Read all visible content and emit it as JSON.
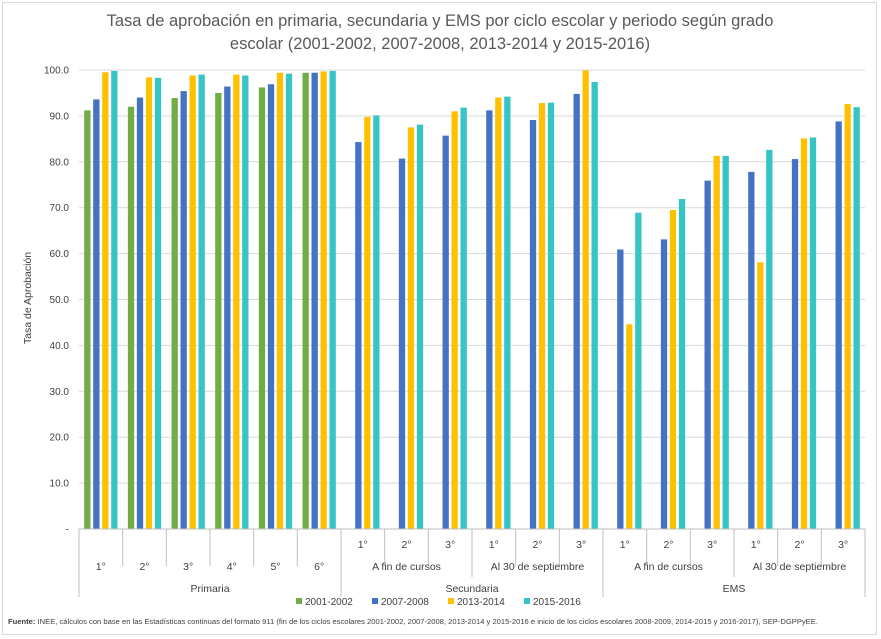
{
  "chart_data": {
    "type": "bar",
    "title": "Tasa de aprobación en primaria, secundaria y EMS por ciclo escolar y periodo según grado escolar (2001-2002, 2007-2008, 2013-2014 y 2015-2016)",
    "title_lines": [
      "Tasa de aprobación en primaria, secundaria y EMS por ciclo escolar y periodo según grado",
      "escolar (2001-2002, 2007-2008, 2013-2014 y 2015-2016)"
    ],
    "ylabel": "Tasa de Aprobación",
    "ylim": [
      0,
      100
    ],
    "yticks": [
      "-",
      "10.0",
      "20.0",
      "30.0",
      "40.0",
      "50.0",
      "60.0",
      "70.0",
      "80.0",
      "90.0",
      "100.0"
    ],
    "grid": true,
    "legend_position": "bottom",
    "categories": [
      "1°",
      "2°",
      "3°",
      "4°",
      "5°",
      "6°",
      "1°",
      "2°",
      "3°",
      "1°",
      "2°",
      "3°",
      "1°",
      "2°",
      "3°",
      "1°",
      "2°",
      "3°"
    ],
    "subgroups": [
      {
        "label": "",
        "count": 6
      },
      {
        "label": "A fin de cursos",
        "count": 3
      },
      {
        "label": "Al 30 de septiembre",
        "count": 3
      },
      {
        "label": "A fin de cursos",
        "count": 3
      },
      {
        "label": "Al 30 de septiembre",
        "count": 3
      }
    ],
    "groups": [
      {
        "label": "Primaria",
        "count": 6
      },
      {
        "label": "Secundaria",
        "count": 6
      },
      {
        "label": "EMS",
        "count": 6
      }
    ],
    "series": [
      {
        "name": "2001-2002",
        "color": "#70ad47",
        "values": [
          91.2,
          92.0,
          93.9,
          95.0,
          96.2,
          99.4,
          null,
          null,
          null,
          null,
          null,
          null,
          null,
          null,
          null,
          null,
          null,
          null
        ]
      },
      {
        "name": "2007-2008",
        "color": "#4472c4",
        "values": [
          93.6,
          94.0,
          95.4,
          96.4,
          96.9,
          99.4,
          84.3,
          80.7,
          85.7,
          91.2,
          89.1,
          94.8,
          60.9,
          63.1,
          75.9,
          77.8,
          80.6,
          88.8
        ]
      },
      {
        "name": "2013-2014",
        "color": "#ffc000",
        "values": [
          99.5,
          98.4,
          98.8,
          99.0,
          99.4,
          99.7,
          89.8,
          87.5,
          91.0,
          94.0,
          92.8,
          99.9,
          44.6,
          69.5,
          81.3,
          58.1,
          85.1,
          92.6
        ]
      },
      {
        "name": "2015-2016",
        "color": "#36c5c5",
        "values": [
          99.8,
          98.3,
          99.0,
          98.8,
          99.2,
          99.8,
          90.1,
          88.1,
          91.8,
          94.2,
          92.9,
          97.4,
          68.9,
          71.9,
          81.3,
          82.6,
          85.3,
          91.9
        ]
      }
    ]
  },
  "footnote": {
    "label": "Fuente:",
    "text": "INEE, cálculos con base en las Estadísticas continuas del formato 911 (fin de los ciclos escolares 2001-2002, 2007-2008, 2013-2014 y 2015-2016 e inicio de los ciclos escolares 2008-2009, 2014-2015 y 2016-2017), SEP-DGPPyEE."
  }
}
